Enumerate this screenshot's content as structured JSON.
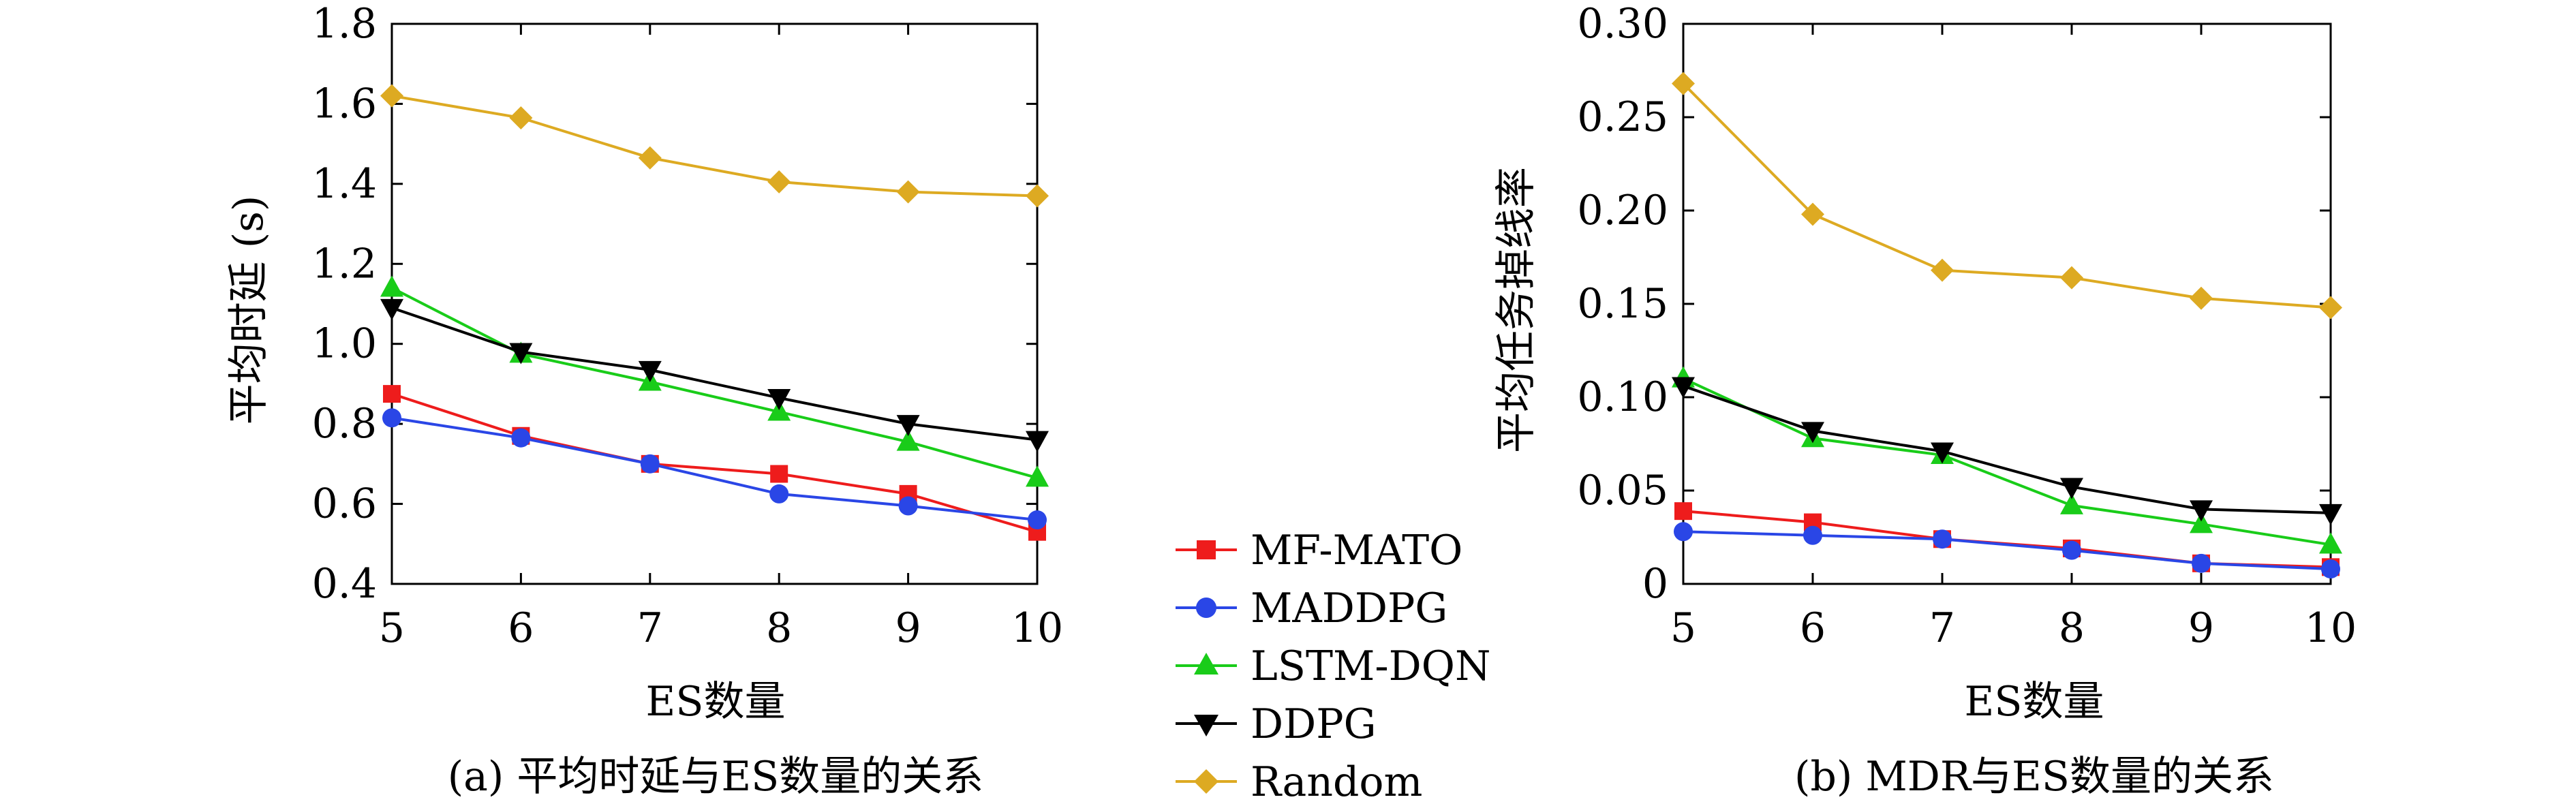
{
  "chart_data": [
    {
      "type": "line",
      "title": "",
      "caption": "(a) 平均时延与ES数量的关系",
      "xlabel": "ES数量",
      "ylabel": "平均时延 (s)",
      "x": [
        5,
        6,
        7,
        8,
        9,
        10
      ],
      "xlim": [
        5,
        10
      ],
      "ylim": [
        0.4,
        1.8
      ],
      "xticks": [
        "5",
        "6",
        "7",
        "8",
        "9",
        "10"
      ],
      "yticks": [
        0.4,
        0.6,
        0.8,
        1.0,
        1.2,
        1.4,
        1.6,
        1.8
      ],
      "ytick_labels": [
        "0.4",
        "0.6",
        "0.8",
        "1.0",
        "1.2",
        "1.4",
        "1.6",
        "1.8"
      ],
      "grid": false,
      "series": [
        {
          "name": "MF-MATO",
          "values": [
            0.875,
            0.77,
            0.7,
            0.675,
            0.625,
            0.53
          ]
        },
        {
          "name": "MADDPG",
          "values": [
            0.815,
            0.765,
            0.7,
            0.625,
            0.595,
            0.56
          ]
        },
        {
          "name": "LSTM-DQN",
          "values": [
            1.14,
            0.975,
            0.905,
            0.83,
            0.755,
            0.665
          ]
        },
        {
          "name": "DDPG",
          "values": [
            1.09,
            0.98,
            0.935,
            0.865,
            0.8,
            0.76
          ]
        },
        {
          "name": "Random",
          "values": [
            1.62,
            1.565,
            1.465,
            1.405,
            1.38,
            1.37
          ]
        }
      ]
    },
    {
      "type": "line",
      "title": "",
      "caption": "(b) MDR与ES数量的关系",
      "xlabel": "ES数量",
      "ylabel": "平均任务掉线率",
      "x": [
        5,
        6,
        7,
        8,
        9,
        10
      ],
      "xlim": [
        5,
        10
      ],
      "ylim": [
        0,
        0.3
      ],
      "xticks": [
        "5",
        "6",
        "7",
        "8",
        "9",
        "10"
      ],
      "yticks": [
        0,
        0.05,
        0.1,
        0.15,
        0.2,
        0.25,
        0.3
      ],
      "ytick_labels": [
        "0",
        "0.05",
        "0.10",
        "0.15",
        "0.20",
        "0.25",
        "0.30"
      ],
      "grid": false,
      "series": [
        {
          "name": "MF-MATO",
          "values": [
            0.039,
            0.033,
            0.024,
            0.019,
            0.011,
            0.009
          ]
        },
        {
          "name": "MADDPG",
          "values": [
            0.028,
            0.026,
            0.024,
            0.018,
            0.011,
            0.008
          ]
        },
        {
          "name": "LSTM-DQN",
          "values": [
            0.11,
            0.078,
            0.069,
            0.042,
            0.032,
            0.021
          ]
        },
        {
          "name": "DDPG",
          "values": [
            0.106,
            0.082,
            0.071,
            0.052,
            0.04,
            0.038
          ]
        },
        {
          "name": "Random",
          "values": [
            0.268,
            0.198,
            0.168,
            0.164,
            0.153,
            0.148
          ]
        }
      ]
    }
  ],
  "legend": {
    "placement": "center-bottom",
    "entries": [
      {
        "name": "MF-MATO",
        "color": "#ee1c1c",
        "marker": "square"
      },
      {
        "name": "MADDPG",
        "color": "#2a46e6",
        "marker": "circle"
      },
      {
        "name": "LSTM-DQN",
        "color": "#19cc19",
        "marker": "triangle-up"
      },
      {
        "name": "DDPG",
        "color": "#000000",
        "marker": "triangle-down"
      },
      {
        "name": "Random",
        "color": "#ddaa22",
        "marker": "diamond"
      }
    ]
  }
}
